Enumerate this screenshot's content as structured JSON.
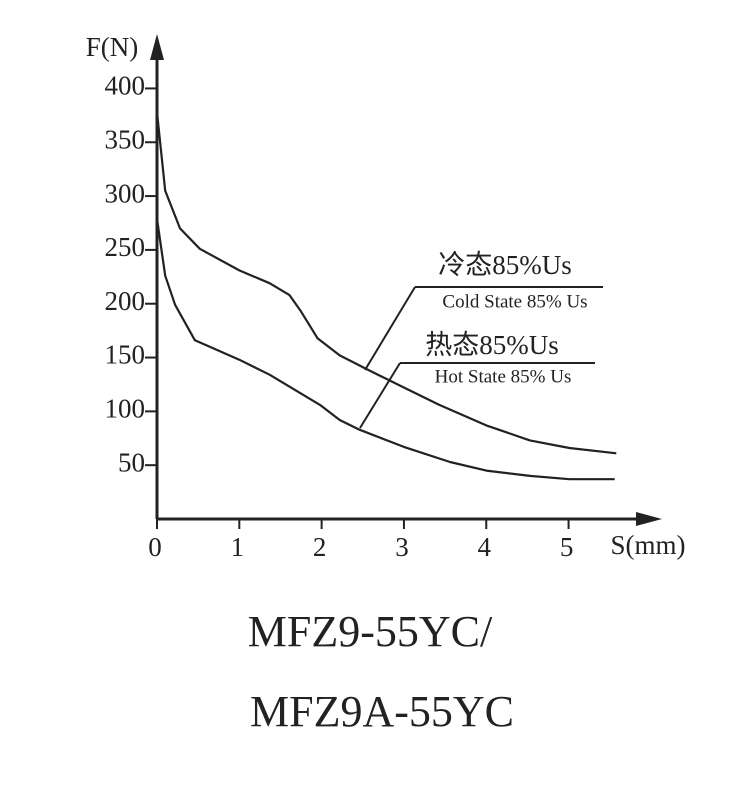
{
  "chart_data": {
    "type": "line",
    "y_label": "F(N)",
    "x_label": "S(mm)",
    "xlim": [
      0,
      6.05
    ],
    "ylim": [
      0,
      445
    ],
    "xticks": [
      0,
      1,
      2,
      3,
      4,
      5
    ],
    "yticks": [
      50,
      100,
      150,
      200,
      250,
      300,
      350,
      400
    ],
    "series": [
      {
        "color": "#222222",
        "x": [
          0,
          0.1,
          0.28,
          0.52,
          1.0,
          1.37,
          1.61,
          1.74,
          1.95,
          2.22,
          2.58,
          2.95,
          3.43,
          4.0,
          4.53,
          5.01,
          5.58
        ],
        "values": [
          378,
          305,
          270,
          251,
          231,
          219,
          208,
          194,
          168,
          152,
          138,
          124,
          106,
          87,
          73,
          66,
          61
        ]
      },
      {
        "color": "#222222",
        "x": [
          0,
          0.1,
          0.22,
          0.46,
          1.0,
          1.37,
          1.74,
          1.98,
          2.22,
          2.46,
          3.0,
          3.56,
          4.0,
          4.53,
          5.01,
          5.56
        ],
        "values": [
          279,
          226,
          199,
          166,
          148,
          134,
          117,
          106,
          92,
          83,
          67,
          53,
          45,
          40,
          37,
          37
        ]
      }
    ],
    "annotations": [
      {
        "text": "冷态85%Us",
        "subtext": "Cold State 85% Us"
      },
      {
        "text": "热态85%Us",
        "subtext": "Hot State 85% Us"
      }
    ],
    "caption_lines": [
      "MFZ9-55YC/",
      "MFZ9A-55YC"
    ]
  }
}
